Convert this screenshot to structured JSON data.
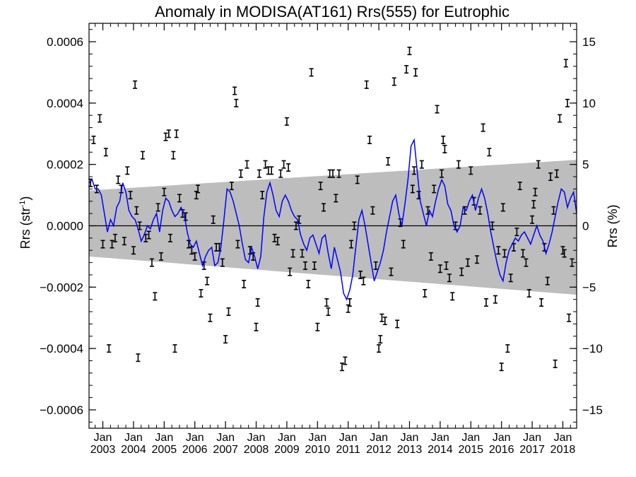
{
  "chart_data": {
    "type": "scatter",
    "title": "Anomaly in MODISA(AT161) Rrs(555) for Eutrophic",
    "ylabel_left": "Rrs (str",
    "ylabel_left_sup": "-1",
    "ylabel_left_close": ")",
    "ylabel_right": "Rrs (%)",
    "xlim": [
      2002.55,
      2018.45
    ],
    "ylim_left": [
      -0.00066,
      0.00066
    ],
    "ylim_right": [
      -16.5,
      16.5
    ],
    "y_ticks_left": [
      {
        "value": 0.0006,
        "label": "0.0006"
      },
      {
        "value": 0.0004,
        "label": "0.0004"
      },
      {
        "value": 0.0002,
        "label": "0.0002"
      },
      {
        "value": 0.0,
        "label": "0.0000"
      },
      {
        "value": -0.0002,
        "label": "−0.0002"
      },
      {
        "value": -0.0004,
        "label": "−0.0004"
      },
      {
        "value": -0.0006,
        "label": "−0.0006"
      }
    ],
    "y_ticks_right": [
      {
        "value": 15,
        "label": "15"
      },
      {
        "value": 10,
        "label": "10"
      },
      {
        "value": 5,
        "label": "5"
      },
      {
        "value": 0,
        "label": "0"
      },
      {
        "value": -5,
        "label": "−5"
      },
      {
        "value": -10,
        "label": "−10"
      },
      {
        "value": -15,
        "label": "−15"
      }
    ],
    "x_ticks": [
      {
        "value": 2003,
        "month": "Jan",
        "year": "2003"
      },
      {
        "value": 2004,
        "month": "Jan",
        "year": "2004"
      },
      {
        "value": 2005,
        "month": "Jan",
        "year": "2005"
      },
      {
        "value": 2006,
        "month": "Jan",
        "year": "2006"
      },
      {
        "value": 2007,
        "month": "Jan",
        "year": "2007"
      },
      {
        "value": 2008,
        "month": "Jan",
        "year": "2008"
      },
      {
        "value": 2009,
        "month": "Jan",
        "year": "2009"
      },
      {
        "value": 2010,
        "month": "Jan",
        "year": "2010"
      },
      {
        "value": 2011,
        "month": "Jan",
        "year": "2011"
      },
      {
        "value": 2012,
        "month": "Jan",
        "year": "2012"
      },
      {
        "value": 2013,
        "month": "Jan",
        "year": "2013"
      },
      {
        "value": 2014,
        "month": "Jan",
        "year": "2014"
      },
      {
        "value": 2015,
        "month": "Jan",
        "year": "2015"
      },
      {
        "value": 2016,
        "month": "Jan",
        "year": "2016"
      },
      {
        "value": 2017,
        "month": "Jan",
        "year": "2017"
      },
      {
        "value": 2018,
        "month": "Jan",
        "year": "2018"
      }
    ],
    "band": {
      "start": [
        2002.55,
        0.000115,
        -0.0001
      ],
      "end": [
        2018.45,
        0.000215,
        -0.000225
      ]
    },
    "error_half_width": 1.2e-05,
    "points": [
      [
        2002.6,
        0.00014
      ],
      [
        2002.7,
        0.00028
      ],
      [
        2002.8,
        0.00012
      ],
      [
        2002.9,
        0.00035
      ],
      [
        2003.0,
        -6e-05
      ],
      [
        2003.1,
        0.00024
      ],
      [
        2003.2,
        -0.0004
      ],
      [
        2003.3,
        -6e-05
      ],
      [
        2003.4,
        -4e-05
      ],
      [
        2003.5,
        0.00015
      ],
      [
        2003.6,
        0.00012
      ],
      [
        2003.7,
        -5e-05
      ],
      [
        2003.8,
        0.00018
      ],
      [
        2003.9,
        0.0001
      ],
      [
        2004.0,
        -8e-05
      ],
      [
        2004.05,
        0.00046
      ],
      [
        2004.1,
        5e-05
      ],
      [
        2004.15,
        -0.00043
      ],
      [
        2004.2,
        -0.0
      ],
      [
        2004.3,
        0.00023
      ],
      [
        2004.4,
        -4e-05
      ],
      [
        2004.5,
        -3e-05
      ],
      [
        2004.6,
        -0.00012
      ],
      [
        2004.7,
        -0.00023
      ],
      [
        2004.8,
        6e-05
      ],
      [
        2004.9,
        -0.0001
      ],
      [
        2005.0,
        0.00011
      ],
      [
        2005.05,
        0.00029
      ],
      [
        2005.15,
        0.0003
      ],
      [
        2005.2,
        -4e-05
      ],
      [
        2005.3,
        0.00023
      ],
      [
        2005.35,
        -0.0004
      ],
      [
        2005.4,
        0.0003
      ],
      [
        2005.5,
        9e-05
      ],
      [
        2005.6,
        4e-05
      ],
      [
        2005.7,
        3e-05
      ],
      [
        2005.8,
        -6e-05
      ],
      [
        2005.9,
        -8e-05
      ],
      [
        2006.0,
        -0.0001
      ],
      [
        2006.05,
        0.0001
      ],
      [
        2006.1,
        0.00012
      ],
      [
        2006.2,
        -0.00022
      ],
      [
        2006.3,
        -0.00013
      ],
      [
        2006.4,
        -0.00018
      ],
      [
        2006.5,
        -0.0003
      ],
      [
        2006.6,
        2e-05
      ],
      [
        2006.7,
        -7e-05
      ],
      [
        2006.8,
        -7e-05
      ],
      [
        2006.9,
        -0.00012
      ],
      [
        2007.0,
        -0.00037
      ],
      [
        2007.1,
        -0.00028
      ],
      [
        2007.2,
        0.00013
      ],
      [
        2007.3,
        0.00044
      ],
      [
        2007.35,
        0.0004
      ],
      [
        2007.4,
        -6e-05
      ],
      [
        2007.5,
        0.00017
      ],
      [
        2007.6,
        -0.00019
      ],
      [
        2007.7,
        0.0002
      ],
      [
        2007.8,
        -8e-05
      ],
      [
        2007.9,
        -0.0001
      ],
      [
        2008.0,
        -0.00033
      ],
      [
        2008.05,
        -0.00025
      ],
      [
        2008.1,
        0.00017
      ],
      [
        2008.2,
        0.0001
      ],
      [
        2008.3,
        0.0002
      ],
      [
        2008.4,
        0.00018
      ],
      [
        2008.5,
        0.00018
      ],
      [
        2008.6,
        -4e-05
      ],
      [
        2008.7,
        -5e-05
      ],
      [
        2008.8,
        0.00017
      ],
      [
        2008.9,
        0.0002
      ],
      [
        2009.0,
        0.00034
      ],
      [
        2009.05,
        0.00019
      ],
      [
        2009.1,
        -0.00015
      ],
      [
        2009.2,
        -9e-05
      ],
      [
        2009.3,
        0.0
      ],
      [
        2009.4,
        2e-05
      ],
      [
        2009.5,
        -9e-05
      ],
      [
        2009.6,
        -0.00013
      ],
      [
        2009.7,
        -0.00019
      ],
      [
        2009.8,
        0.0005
      ],
      [
        2009.9,
        -0.00013
      ],
      [
        2010.0,
        -0.00033
      ],
      [
        2010.1,
        0.00013
      ],
      [
        2010.2,
        6e-05
      ],
      [
        2010.3,
        -0.00025
      ],
      [
        2010.35,
        -0.00028
      ],
      [
        2010.4,
        0.00017
      ],
      [
        2010.5,
        0.00017
      ],
      [
        2010.6,
        9e-05
      ],
      [
        2010.7,
        0.00017
      ],
      [
        2010.8,
        -0.00046
      ],
      [
        2010.9,
        -0.00044
      ],
      [
        2011.0,
        -0.00027
      ],
      [
        2011.05,
        -0.00025
      ],
      [
        2011.1,
        -6e-05
      ],
      [
        2011.2,
        0.0
      ],
      [
        2011.3,
        0.00015
      ],
      [
        2011.4,
        -0.00016
      ],
      [
        2011.5,
        -0.00018
      ],
      [
        2011.6,
        0.00046
      ],
      [
        2011.7,
        0.00028
      ],
      [
        2011.8,
        5e-05
      ],
      [
        2011.9,
        -0.00013
      ],
      [
        2012.0,
        -0.0004
      ],
      [
        2012.05,
        -0.00037
      ],
      [
        2012.1,
        -0.0003
      ],
      [
        2012.2,
        -0.00031
      ],
      [
        2012.3,
        0.00021
      ],
      [
        2012.4,
        -0.00015
      ],
      [
        2012.5,
        0.00047
      ],
      [
        2012.6,
        -0.00032
      ],
      [
        2012.7,
        1e-05
      ],
      [
        2012.8,
        -6e-05
      ],
      [
        2012.9,
        0.00051
      ],
      [
        2013.0,
        0.00057
      ],
      [
        2013.1,
        0.00012
      ],
      [
        2013.15,
        0.00018
      ],
      [
        2013.2,
        0.0005
      ],
      [
        2013.3,
        0.0001
      ],
      [
        2013.4,
        0.0002
      ],
      [
        2013.5,
        -0.00022
      ],
      [
        2013.6,
        5e-05
      ],
      [
        2013.7,
        -0.0001
      ],
      [
        2013.8,
        0.00012
      ],
      [
        2013.9,
        0.00038
      ],
      [
        2014.0,
        -0.00014
      ],
      [
        2014.05,
        0.00017
      ],
      [
        2014.1,
        0.00028
      ],
      [
        2014.15,
        0.00025
      ],
      [
        2014.2,
        -0.00013
      ],
      [
        2014.3,
        -0.00017
      ],
      [
        2014.4,
        -0.00023
      ],
      [
        2014.5,
        0.0
      ],
      [
        2014.6,
        0.0002
      ],
      [
        2014.7,
        -0.00015
      ],
      [
        2014.8,
        5e-05
      ],
      [
        2014.9,
        -0.00012
      ],
      [
        2015.0,
        0.00018
      ],
      [
        2015.1,
        8e-05
      ],
      [
        2015.2,
        -0.00011
      ],
      [
        2015.3,
        5e-05
      ],
      [
        2015.4,
        0.00032
      ],
      [
        2015.5,
        -0.00025
      ],
      [
        2015.6,
        0.00024
      ],
      [
        2015.7,
        -0.0
      ],
      [
        2015.8,
        -0.00024
      ],
      [
        2015.9,
        -8e-05
      ],
      [
        2016.0,
        -0.00046
      ],
      [
        2016.05,
        6e-05
      ],
      [
        2016.1,
        -9e-05
      ],
      [
        2016.2,
        -0.0004
      ],
      [
        2016.3,
        -0.00017
      ],
      [
        2016.4,
        -7e-05
      ],
      [
        2016.5,
        -2e-05
      ],
      [
        2016.6,
        0.00013
      ],
      [
        2016.7,
        -9e-05
      ],
      [
        2016.8,
        -0.00012
      ],
      [
        2016.9,
        -0.00022
      ],
      [
        2017.0,
        2e-05
      ],
      [
        2017.05,
        7e-05
      ],
      [
        2017.1,
        0.00011
      ],
      [
        2017.2,
        0.0002
      ],
      [
        2017.3,
        -0.00025
      ],
      [
        2017.4,
        -7e-05
      ],
      [
        2017.5,
        -0.00018
      ],
      [
        2017.6,
        0.00016
      ],
      [
        2017.7,
        5e-05
      ],
      [
        2017.75,
        -0.00045
      ],
      [
        2017.8,
        0.00017
      ],
      [
        2017.9,
        0.00035
      ],
      [
        2018.0,
        -8e-05
      ],
      [
        2018.05,
        -9e-05
      ],
      [
        2018.1,
        0.00053
      ],
      [
        2018.15,
        0.0004
      ],
      [
        2018.2,
        -0.0003
      ],
      [
        2018.3,
        -0.00012
      ]
    ],
    "line": [
      [
        2002.55,
        0.00014
      ],
      [
        2002.65,
        0.00015
      ],
      [
        2002.75,
        0.00012
      ],
      [
        2002.85,
        0.00012
      ],
      [
        2002.95,
        0.0001
      ],
      [
        2003.05,
        4e-05
      ],
      [
        2003.15,
        -2e-05
      ],
      [
        2003.25,
        2e-05
      ],
      [
        2003.35,
        0.0
      ],
      [
        2003.45,
        6e-05
      ],
      [
        2003.55,
        8e-05
      ],
      [
        2003.65,
        0.00014
      ],
      [
        2003.75,
        0.00011
      ],
      [
        2003.85,
        5e-05
      ],
      [
        2003.95,
        3e-05
      ],
      [
        2004.05,
        2e-05
      ],
      [
        2004.15,
        -1e-05
      ],
      [
        2004.25,
        -5e-05
      ],
      [
        2004.35,
        -3e-05
      ],
      [
        2004.45,
        -0.0
      ],
      [
        2004.55,
        -1e-05
      ],
      [
        2004.65,
        2e-05
      ],
      [
        2004.75,
        4e-05
      ],
      [
        2004.85,
        -2e-05
      ],
      [
        2004.95,
        5e-05
      ],
      [
        2005.05,
        9e-05
      ],
      [
        2005.15,
        8e-05
      ],
      [
        2005.25,
        5e-05
      ],
      [
        2005.35,
        3e-05
      ],
      [
        2005.45,
        4e-05
      ],
      [
        2005.55,
        6e-05
      ],
      [
        2005.65,
        4e-05
      ],
      [
        2005.75,
        -2e-05
      ],
      [
        2005.85,
        -6e-05
      ],
      [
        2005.95,
        -7e-05
      ],
      [
        2006.05,
        -5e-05
      ],
      [
        2006.15,
        -9e-05
      ],
      [
        2006.25,
        -0.00013
      ],
      [
        2006.35,
        -0.0001
      ],
      [
        2006.45,
        -8e-05
      ],
      [
        2006.55,
        -7e-05
      ],
      [
        2006.65,
        -0.00013
      ],
      [
        2006.75,
        -0.00012
      ],
      [
        2006.85,
        -7e-05
      ],
      [
        2006.95,
        2e-05
      ],
      [
        2007.05,
        0.00012
      ],
      [
        2007.15,
        0.00011
      ],
      [
        2007.25,
        8e-05
      ],
      [
        2007.35,
        4e-05
      ],
      [
        2007.45,
        0.0
      ],
      [
        2007.55,
        -6e-05
      ],
      [
        2007.65,
        -0.00011
      ],
      [
        2007.75,
        -0.00012
      ],
      [
        2007.85,
        -7e-05
      ],
      [
        2007.95,
        -0.0001
      ],
      [
        2008.05,
        -0.00014
      ],
      [
        2008.15,
        -0.0001
      ],
      [
        2008.25,
        3e-05
      ],
      [
        2008.35,
        0.00011
      ],
      [
        2008.45,
        0.00014
      ],
      [
        2008.55,
        0.0001
      ],
      [
        2008.65,
        5e-05
      ],
      [
        2008.75,
        3e-05
      ],
      [
        2008.85,
        8e-05
      ],
      [
        2008.95,
        0.0001
      ],
      [
        2009.05,
        8e-05
      ],
      [
        2009.15,
        5e-05
      ],
      [
        2009.25,
        3e-05
      ],
      [
        2009.35,
        2e-05
      ],
      [
        2009.45,
        -3e-05
      ],
      [
        2009.55,
        -6e-05
      ],
      [
        2009.65,
        -8e-05
      ],
      [
        2009.75,
        -4e-05
      ],
      [
        2009.85,
        -3e-05
      ],
      [
        2009.95,
        -6e-05
      ],
      [
        2010.05,
        -9e-05
      ],
      [
        2010.15,
        -4e-05
      ],
      [
        2010.25,
        -3e-05
      ],
      [
        2010.35,
        -9e-05
      ],
      [
        2010.45,
        -0.00014
      ],
      [
        2010.55,
        -7e-05
      ],
      [
        2010.65,
        -0.00011
      ],
      [
        2010.75,
        -0.00015
      ],
      [
        2010.85,
        -0.00022
      ],
      [
        2010.95,
        -0.00024
      ],
      [
        2011.05,
        -0.00021
      ],
      [
        2011.15,
        -0.00016
      ],
      [
        2011.25,
        -7e-05
      ],
      [
        2011.35,
        2e-05
      ],
      [
        2011.45,
        5e-05
      ],
      [
        2011.55,
        0.0
      ],
      [
        2011.65,
        -6e-05
      ],
      [
        2011.75,
        -0.00012
      ],
      [
        2011.85,
        -0.00018
      ],
      [
        2011.95,
        -0.00015
      ],
      [
        2012.05,
        -0.00012
      ],
      [
        2012.15,
        -8e-05
      ],
      [
        2012.25,
        -2e-05
      ],
      [
        2012.35,
        3e-05
      ],
      [
        2012.45,
        8e-05
      ],
      [
        2012.55,
        0.0001
      ],
      [
        2012.65,
        4e-05
      ],
      [
        2012.75,
        0.0
      ],
      [
        2012.85,
        7e-05
      ],
      [
        2012.95,
        0.00015
      ],
      [
        2013.05,
        0.00026
      ],
      [
        2013.15,
        0.00028
      ],
      [
        2013.25,
        0.00018
      ],
      [
        2013.35,
        8e-05
      ],
      [
        2013.45,
        4e-05
      ],
      [
        2013.55,
        0.0
      ],
      [
        2013.65,
        5e-05
      ],
      [
        2013.75,
        3e-05
      ],
      [
        2013.85,
        8e-05
      ],
      [
        2013.95,
        0.00012
      ],
      [
        2014.05,
        0.00015
      ],
      [
        2014.15,
        0.00013
      ],
      [
        2014.25,
        7e-05
      ],
      [
        2014.35,
        5e-05
      ],
      [
        2014.45,
        0.0
      ],
      [
        2014.55,
        -2e-05
      ],
      [
        2014.65,
        0.0
      ],
      [
        2014.75,
        6e-05
      ],
      [
        2014.85,
        5e-05
      ],
      [
        2014.95,
        8e-05
      ],
      [
        2015.05,
        0.0001
      ],
      [
        2015.15,
        5e-05
      ],
      [
        2015.25,
        9e-05
      ],
      [
        2015.35,
        0.00012
      ],
      [
        2015.45,
        9e-05
      ],
      [
        2015.55,
        4e-05
      ],
      [
        2015.65,
        -2e-05
      ],
      [
        2015.75,
        -7e-05
      ],
      [
        2015.85,
        -0.00012
      ],
      [
        2015.95,
        -0.00016
      ],
      [
        2016.05,
        -0.00018
      ],
      [
        2016.15,
        -0.00012
      ],
      [
        2016.25,
        -8e-05
      ],
      [
        2016.35,
        -6e-05
      ],
      [
        2016.45,
        -4e-05
      ],
      [
        2016.55,
        -5e-05
      ],
      [
        2016.65,
        -3e-05
      ],
      [
        2016.75,
        -2e-05
      ],
      [
        2016.85,
        -4e-05
      ],
      [
        2016.95,
        -6e-05
      ],
      [
        2017.05,
        -3e-05
      ],
      [
        2017.15,
        0.0
      ],
      [
        2017.25,
        -3e-05
      ],
      [
        2017.35,
        -5e-05
      ],
      [
        2017.45,
        -9e-05
      ],
      [
        2017.55,
        -6e-05
      ],
      [
        2017.65,
        -2e-05
      ],
      [
        2017.75,
        3e-05
      ],
      [
        2017.85,
        8e-05
      ],
      [
        2017.95,
        0.00012
      ],
      [
        2018.05,
        0.00011
      ],
      [
        2018.15,
        6e-05
      ],
      [
        2018.25,
        9e-05
      ],
      [
        2018.35,
        0.00011
      ],
      [
        2018.45,
        4e-05
      ]
    ],
    "colors": {
      "line": "#0000ff",
      "band": "#bdbdbd",
      "points": "#000000",
      "zero_line": "#000000"
    },
    "grid": false
  }
}
